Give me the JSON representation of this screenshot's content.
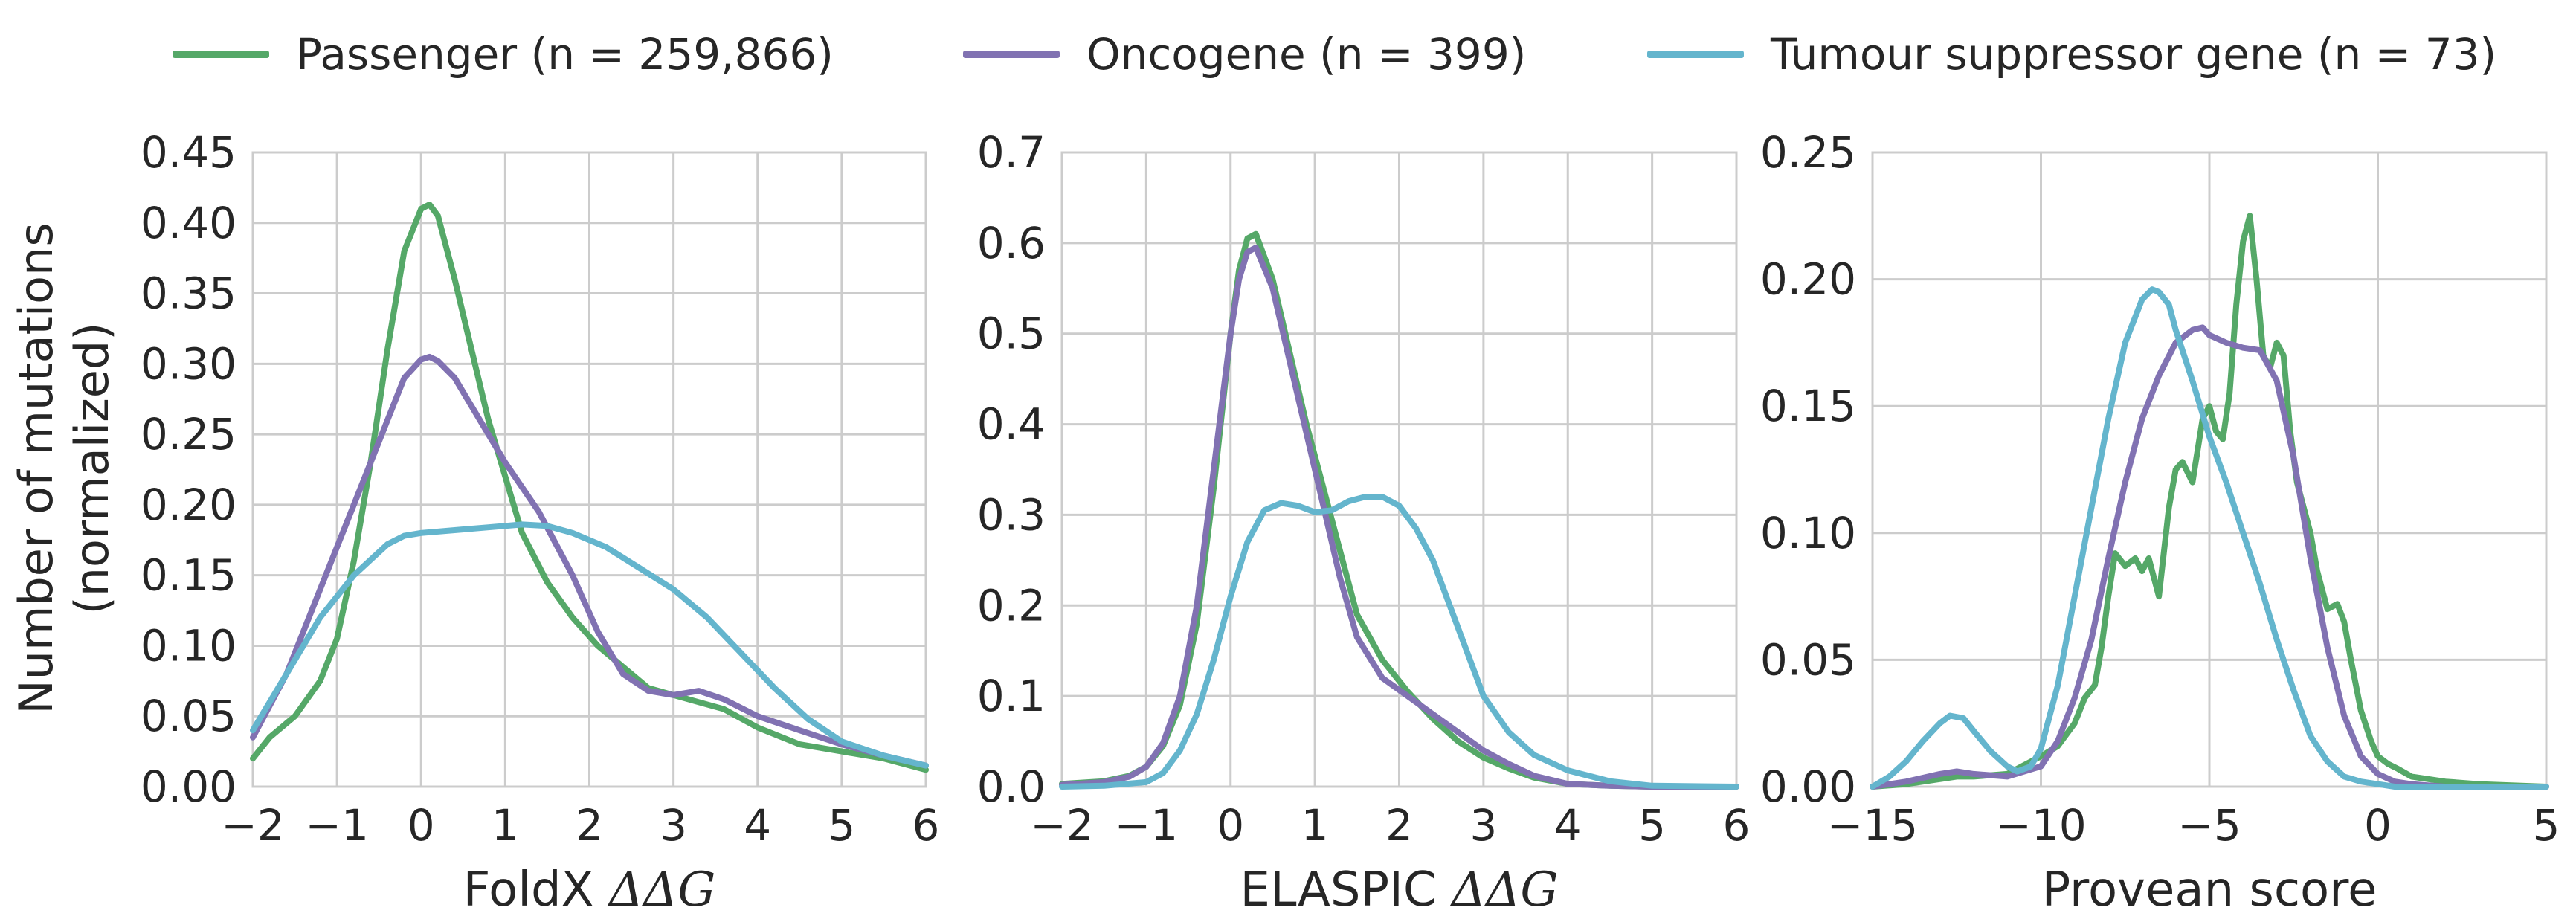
{
  "legend": {
    "passenger": "Passenger (n = 259,866)",
    "oncogene": "Oncogene (n = 399)",
    "tsg": "Tumour suppressor gene (n = 73)"
  },
  "colors": {
    "passenger": "#55a868",
    "oncogene": "#8172b2",
    "tsg": "#64b5cd",
    "grid": "#cccccc",
    "text": "#262626"
  },
  "chart_data": [
    {
      "type": "line",
      "xlabel_plain": "FoldX ",
      "xlabel_math": "ΔΔG",
      "ylabel": [
        "Number of mutations",
        "(normalized)"
      ],
      "xlim": [
        -2,
        6
      ],
      "ylim": [
        0,
        0.45
      ],
      "xticks": [
        -2,
        -1,
        0,
        1,
        2,
        3,
        4,
        5,
        6
      ],
      "yticks": [
        0.0,
        0.05,
        0.1,
        0.15,
        0.2,
        0.25,
        0.3,
        0.35,
        0.4,
        0.45
      ],
      "ytick_labels": [
        "0.00",
        "0.05",
        "0.10",
        "0.15",
        "0.20",
        "0.25",
        "0.30",
        "0.35",
        "0.40",
        "0.45"
      ],
      "grid": true,
      "series": [
        {
          "key": "passenger",
          "x": [
            -2,
            -1.8,
            -1.5,
            -1.2,
            -1.0,
            -0.8,
            -0.6,
            -0.4,
            -0.2,
            0.0,
            0.1,
            0.2,
            0.4,
            0.6,
            0.8,
            1.0,
            1.2,
            1.5,
            1.8,
            2.1,
            2.4,
            2.7,
            3.0,
            3.3,
            3.6,
            4.0,
            4.5,
            5.0,
            5.5,
            6.0
          ],
          "y": [
            0.02,
            0.035,
            0.05,
            0.075,
            0.105,
            0.16,
            0.23,
            0.31,
            0.38,
            0.41,
            0.413,
            0.405,
            0.36,
            0.31,
            0.26,
            0.22,
            0.18,
            0.145,
            0.12,
            0.1,
            0.085,
            0.07,
            0.065,
            0.06,
            0.055,
            0.042,
            0.03,
            0.025,
            0.02,
            0.012
          ]
        },
        {
          "key": "oncogene",
          "x": [
            -2,
            -1.6,
            -1.2,
            -0.8,
            -0.4,
            -0.2,
            0.0,
            0.1,
            0.2,
            0.4,
            0.7,
            1.0,
            1.4,
            1.8,
            2.1,
            2.4,
            2.7,
            3.0,
            3.3,
            3.6,
            4.0,
            4.5,
            5.0,
            5.5,
            6.0
          ],
          "y": [
            0.035,
            0.08,
            0.14,
            0.2,
            0.26,
            0.29,
            0.303,
            0.305,
            0.302,
            0.29,
            0.26,
            0.23,
            0.195,
            0.15,
            0.11,
            0.08,
            0.068,
            0.065,
            0.068,
            0.062,
            0.05,
            0.04,
            0.03,
            0.022,
            0.015
          ]
        },
        {
          "key": "tsg",
          "x": [
            -2,
            -1.6,
            -1.2,
            -0.8,
            -0.4,
            -0.2,
            0.0,
            0.4,
            0.8,
            1.2,
            1.5,
            1.8,
            2.2,
            2.6,
            3.0,
            3.4,
            3.8,
            4.2,
            4.6,
            5.0,
            5.5,
            6.0
          ],
          "y": [
            0.04,
            0.08,
            0.12,
            0.15,
            0.172,
            0.178,
            0.18,
            0.182,
            0.184,
            0.186,
            0.185,
            0.18,
            0.17,
            0.155,
            0.14,
            0.12,
            0.095,
            0.07,
            0.048,
            0.032,
            0.022,
            0.015
          ]
        }
      ]
    },
    {
      "type": "line",
      "xlabel_plain": "ELASPIC ",
      "xlabel_math": "ΔΔG",
      "xlim": [
        -2,
        6
      ],
      "ylim": [
        0,
        0.7
      ],
      "xticks": [
        -2,
        -1,
        0,
        1,
        2,
        3,
        4,
        5,
        6
      ],
      "yticks": [
        0.0,
        0.1,
        0.2,
        0.3,
        0.4,
        0.5,
        0.6,
        0.7
      ],
      "ytick_labels": [
        "0.0",
        "0.1",
        "0.2",
        "0.3",
        "0.4",
        "0.5",
        "0.6",
        "0.7"
      ],
      "grid": true,
      "series": [
        {
          "key": "passenger",
          "x": [
            -2,
            -1.5,
            -1.2,
            -1.0,
            -0.8,
            -0.6,
            -0.4,
            -0.2,
            0.0,
            0.1,
            0.2,
            0.3,
            0.5,
            0.7,
            0.9,
            1.1,
            1.3,
            1.5,
            1.8,
            2.1,
            2.4,
            2.7,
            3.0,
            3.3,
            3.6,
            4.0,
            4.5,
            5.0,
            6.0
          ],
          "y": [
            0.003,
            0.006,
            0.012,
            0.022,
            0.045,
            0.09,
            0.18,
            0.33,
            0.5,
            0.57,
            0.605,
            0.61,
            0.56,
            0.48,
            0.4,
            0.33,
            0.26,
            0.19,
            0.14,
            0.105,
            0.075,
            0.05,
            0.032,
            0.02,
            0.01,
            0.003,
            0.001,
            0.0,
            0.0
          ]
        },
        {
          "key": "oncogene",
          "x": [
            -2,
            -1.5,
            -1.2,
            -1.0,
            -0.8,
            -0.6,
            -0.4,
            -0.2,
            0.0,
            0.1,
            0.2,
            0.3,
            0.5,
            0.7,
            0.9,
            1.1,
            1.3,
            1.5,
            1.8,
            2.1,
            2.4,
            2.7,
            3.0,
            3.3,
            3.6,
            4.0,
            4.5,
            5.0,
            6.0
          ],
          "y": [
            0.002,
            0.005,
            0.011,
            0.022,
            0.048,
            0.1,
            0.2,
            0.35,
            0.5,
            0.56,
            0.59,
            0.595,
            0.55,
            0.47,
            0.39,
            0.31,
            0.23,
            0.165,
            0.12,
            0.1,
            0.08,
            0.06,
            0.04,
            0.025,
            0.012,
            0.003,
            0.001,
            0.0,
            0.0
          ]
        },
        {
          "key": "tsg",
          "x": [
            -2,
            -1.5,
            -1.0,
            -0.8,
            -0.6,
            -0.4,
            -0.2,
            0.0,
            0.2,
            0.4,
            0.6,
            0.8,
            1.0,
            1.2,
            1.4,
            1.6,
            1.8,
            2.0,
            2.2,
            2.4,
            2.6,
            2.8,
            3.0,
            3.3,
            3.6,
            4.0,
            4.5,
            5.0,
            6.0
          ],
          "y": [
            0.0,
            0.001,
            0.005,
            0.015,
            0.04,
            0.08,
            0.14,
            0.21,
            0.27,
            0.305,
            0.313,
            0.31,
            0.303,
            0.305,
            0.315,
            0.32,
            0.32,
            0.31,
            0.285,
            0.25,
            0.2,
            0.15,
            0.1,
            0.06,
            0.035,
            0.018,
            0.006,
            0.001,
            0.0
          ]
        }
      ]
    },
    {
      "type": "line",
      "xlabel_plain": "Provean score",
      "xlabel_math": "",
      "xlim": [
        -15,
        5
      ],
      "ylim": [
        0,
        0.25
      ],
      "xticks": [
        -15,
        -10,
        -5,
        0,
        5
      ],
      "xtick_labels": [
        "−15",
        "−10",
        "−5",
        "0",
        "5"
      ],
      "yticks": [
        0.0,
        0.05,
        0.1,
        0.15,
        0.2,
        0.25
      ],
      "ytick_labels": [
        "0.00",
        "0.05",
        "0.10",
        "0.15",
        "0.20",
        "0.25"
      ],
      "grid": true,
      "series": [
        {
          "key": "passenger",
          "x": [
            -15,
            -14,
            -13,
            -12.5,
            -12,
            -11,
            -10,
            -9.5,
            -9,
            -8.7,
            -8.4,
            -8.2,
            -8.0,
            -7.8,
            -7.5,
            -7.2,
            -7.0,
            -6.8,
            -6.5,
            -6.2,
            -6.0,
            -5.8,
            -5.5,
            -5.2,
            -5.0,
            -4.8,
            -4.6,
            -4.4,
            -4.2,
            -4.0,
            -3.8,
            -3.6,
            -3.4,
            -3.2,
            -3.0,
            -2.8,
            -2.6,
            -2.4,
            -2.2,
            -2.0,
            -1.8,
            -1.5,
            -1.2,
            -1.0,
            -0.8,
            -0.5,
            -0.2,
            0.0,
            0.3,
            0.6,
            1.0,
            2.0,
            3.0,
            5.0
          ],
          "y": [
            0.0,
            0.001,
            0.003,
            0.004,
            0.004,
            0.005,
            0.012,
            0.016,
            0.025,
            0.035,
            0.04,
            0.055,
            0.075,
            0.092,
            0.087,
            0.09,
            0.085,
            0.09,
            0.075,
            0.11,
            0.125,
            0.128,
            0.12,
            0.145,
            0.15,
            0.14,
            0.137,
            0.155,
            0.19,
            0.215,
            0.225,
            0.2,
            0.17,
            0.165,
            0.175,
            0.17,
            0.14,
            0.12,
            0.11,
            0.1,
            0.085,
            0.07,
            0.072,
            0.065,
            0.05,
            0.03,
            0.018,
            0.012,
            0.009,
            0.007,
            0.004,
            0.002,
            0.001,
            0.0
          ]
        },
        {
          "key": "oncogene",
          "x": [
            -15,
            -14,
            -13,
            -12.5,
            -12,
            -11,
            -10,
            -9.5,
            -9,
            -8.5,
            -8,
            -7.5,
            -7,
            -6.5,
            -6,
            -5.5,
            -5.2,
            -5.0,
            -4.5,
            -4.0,
            -3.5,
            -3.0,
            -2.5,
            -2.0,
            -1.5,
            -1.0,
            -0.5,
            0.0,
            0.5,
            1.0,
            2.0,
            5.0
          ],
          "y": [
            0.0,
            0.002,
            0.005,
            0.006,
            0.005,
            0.004,
            0.008,
            0.018,
            0.035,
            0.058,
            0.09,
            0.12,
            0.145,
            0.162,
            0.175,
            0.18,
            0.181,
            0.178,
            0.175,
            0.173,
            0.172,
            0.16,
            0.13,
            0.09,
            0.055,
            0.028,
            0.012,
            0.005,
            0.002,
            0.001,
            0.0,
            0.0
          ]
        },
        {
          "key": "tsg",
          "x": [
            -15,
            -14.5,
            -14,
            -13.5,
            -13,
            -12.7,
            -12.3,
            -12,
            -11.5,
            -11,
            -10.7,
            -10.3,
            -10,
            -9.5,
            -9,
            -8.5,
            -8,
            -7.5,
            -7,
            -6.7,
            -6.5,
            -6.2,
            -6,
            -5.5,
            -5,
            -4.5,
            -4,
            -3.5,
            -3,
            -2.5,
            -2,
            -1.5,
            -1,
            -0.5,
            0,
            0.5,
            1,
            2,
            5
          ],
          "y": [
            0.0,
            0.004,
            0.01,
            0.018,
            0.025,
            0.028,
            0.027,
            0.022,
            0.014,
            0.008,
            0.006,
            0.008,
            0.015,
            0.04,
            0.075,
            0.11,
            0.145,
            0.175,
            0.192,
            0.196,
            0.195,
            0.19,
            0.18,
            0.16,
            0.138,
            0.12,
            0.1,
            0.08,
            0.058,
            0.038,
            0.02,
            0.01,
            0.004,
            0.002,
            0.001,
            0.0,
            0.0,
            0.0,
            0.0
          ]
        }
      ]
    }
  ]
}
